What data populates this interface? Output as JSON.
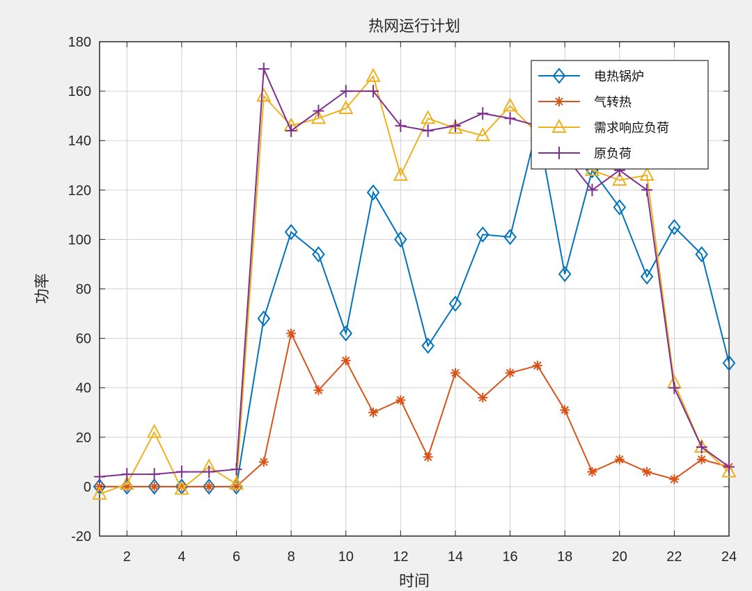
{
  "chart_data": {
    "type": "line",
    "title": "热网运行计划",
    "xlabel": "时间",
    "ylabel": "功率",
    "xlim": [
      1,
      24
    ],
    "ylim": [
      -20,
      180
    ],
    "xticks": [
      2,
      4,
      6,
      8,
      10,
      12,
      14,
      16,
      18,
      20,
      22,
      24
    ],
    "yticks": [
      -20,
      0,
      20,
      40,
      60,
      80,
      100,
      120,
      140,
      160,
      180
    ],
    "grid": true,
    "legend_position": "top-right",
    "x": [
      1,
      2,
      3,
      4,
      5,
      6,
      7,
      8,
      9,
      10,
      11,
      12,
      13,
      14,
      15,
      16,
      17,
      18,
      19,
      20,
      21,
      22,
      23,
      24
    ],
    "series": [
      {
        "name": "电热锅炉",
        "color": "#0072BD",
        "marker": "diamond",
        "values": [
          0,
          0,
          0,
          0,
          0,
          0,
          68,
          103,
          94,
          62,
          119,
          100,
          57,
          74,
          102,
          101,
          146,
          86,
          128,
          113,
          85,
          105,
          94,
          50
        ]
      },
      {
        "name": "气转热",
        "color": "#D95319",
        "marker": "asterisk",
        "values": [
          0,
          0,
          0,
          0,
          0,
          0,
          10,
          62,
          39,
          51,
          30,
          35,
          12,
          46,
          36,
          46,
          49,
          31,
          6,
          11,
          6,
          3,
          11,
          8
        ]
      },
      {
        "name": "需求响应负荷",
        "color": "#EDB120",
        "marker": "triangle",
        "values": [
          -3,
          1,
          22,
          -1,
          8,
          1,
          158,
          146,
          149,
          153,
          166,
          126,
          149,
          145,
          142,
          154,
          143,
          137,
          128,
          124,
          126,
          42,
          16,
          6
        ]
      },
      {
        "name": "原负荷",
        "color": "#7E2F8E",
        "marker": "plus",
        "values": [
          4,
          5,
          5,
          6,
          6,
          7,
          169,
          144,
          152,
          160,
          160,
          146,
          144,
          146,
          151,
          149,
          146,
          134,
          120,
          128,
          120,
          40,
          16,
          8
        ]
      }
    ]
  }
}
